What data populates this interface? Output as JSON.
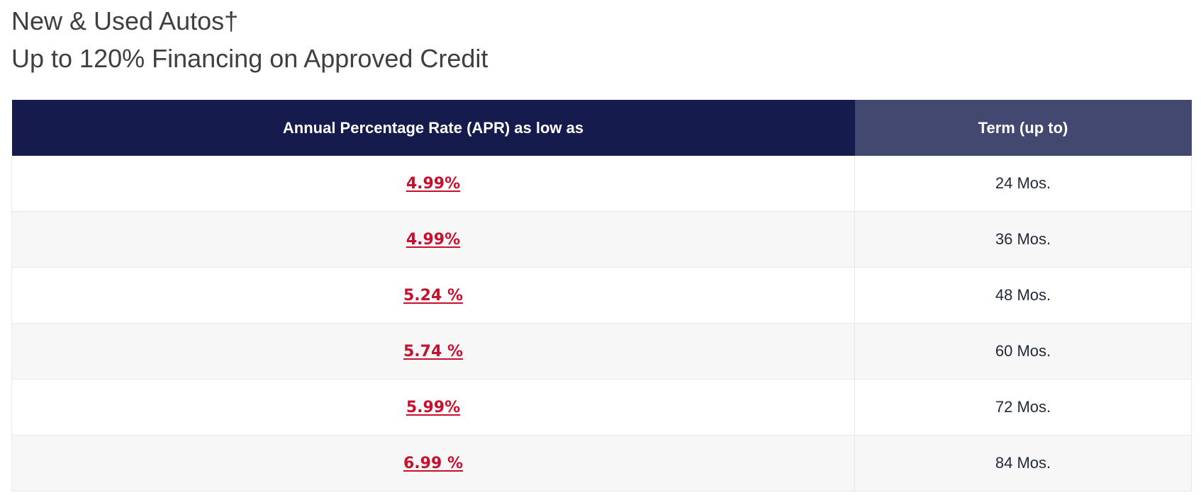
{
  "heading": {
    "line1": "New & Used Autos†",
    "line2": "Up to 120% Financing on Approved Credit"
  },
  "table": {
    "headers": {
      "apr": "Annual Percentage Rate (APR) as low as",
      "term": "Term (up to)"
    },
    "colors": {
      "apr_header_bg": "#161b4d",
      "term_header_bg": "#434871",
      "rate_link": "#c8102e",
      "alt_row_bg": "#f7f7f7"
    },
    "rows": [
      {
        "apr": "4.99%",
        "term": "24 Mos."
      },
      {
        "apr": "4.99%",
        "term": "36 Mos."
      },
      {
        "apr": "5.24 %",
        "term": "48 Mos."
      },
      {
        "apr": "5.74 %",
        "term": "60 Mos."
      },
      {
        "apr": "5.99%",
        "term": "72 Mos."
      },
      {
        "apr": "6.99 %",
        "term": "84 Mos."
      }
    ]
  }
}
